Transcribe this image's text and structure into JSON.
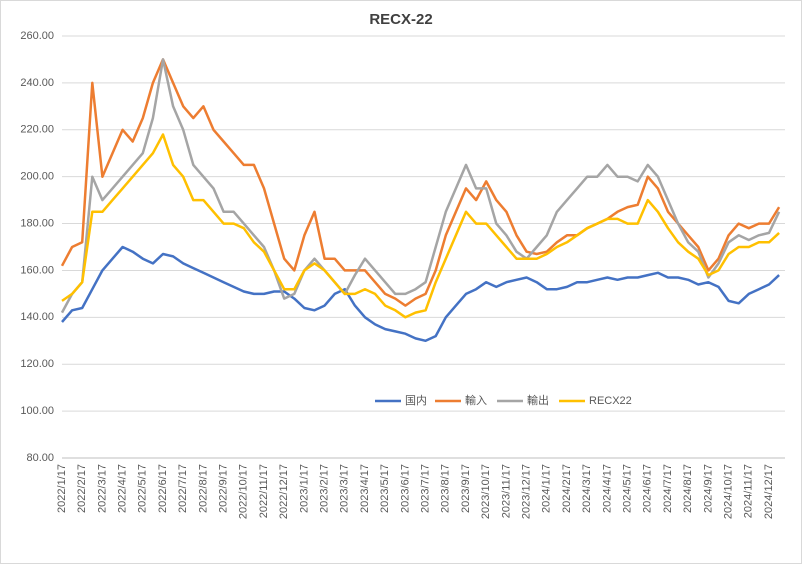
{
  "chart_data": {
    "type": "line",
    "title": "RECX-22",
    "categories": [
      "2022/1/17",
      null,
      "2022/2/17",
      null,
      "2022/3/17",
      null,
      "2022/4/17",
      null,
      "2022/5/17",
      null,
      "2022/6/17",
      null,
      "2022/7/17",
      null,
      "2022/8/17",
      null,
      "2022/9/17",
      null,
      "2022/10/17",
      null,
      "2022/11/17",
      null,
      "2022/12/17",
      null,
      "2023/1/17",
      null,
      "2023/2/17",
      null,
      "2023/3/17",
      null,
      "2023/4/17",
      null,
      "2023/5/17",
      null,
      "2023/6/17",
      null,
      "2023/7/17",
      null,
      "2023/8/17",
      null,
      "2023/9/17",
      null,
      "2023/10/17",
      null,
      "2023/11/17",
      null,
      "2023/12/17",
      null,
      "2024/1/17",
      null,
      "2024/2/17",
      null,
      "2024/3/17",
      null,
      "2024/4/17",
      null,
      "2024/5/17",
      null,
      "2024/6/17",
      null,
      "2024/7/17",
      null,
      "2024/8/17",
      null,
      "2024/9/17",
      null,
      "2024/10/17",
      null,
      "2024/11/17",
      null,
      "2024/12/17",
      null
    ],
    "series": [
      {
        "name": "国内",
        "color": "#4472c4",
        "values": [
          138,
          143,
          144,
          152,
          160,
          165,
          170,
          168,
          165,
          163,
          167,
          166,
          163,
          161,
          159,
          157,
          155,
          153,
          151,
          150,
          150,
          151,
          151,
          148,
          144,
          143,
          145,
          150,
          152,
          145,
          140,
          137,
          135,
          134,
          133,
          131,
          130,
          132,
          140,
          145,
          150,
          152,
          155,
          153,
          155,
          156,
          157,
          155,
          152,
          152,
          153,
          155,
          155,
          156,
          157,
          156,
          157,
          157,
          158,
          159,
          157,
          157,
          156,
          154,
          155,
          153,
          147,
          146,
          150,
          152,
          154,
          158
        ]
      },
      {
        "name": "輸入",
        "color": "#ed7d31",
        "values": [
          162,
          170,
          172,
          240,
          200,
          210,
          220,
          215,
          225,
          240,
          250,
          240,
          230,
          225,
          230,
          220,
          215,
          210,
          205,
          205,
          195,
          180,
          165,
          160,
          175,
          185,
          165,
          165,
          160,
          160,
          160,
          155,
          150,
          148,
          145,
          148,
          150,
          160,
          175,
          185,
          195,
          190,
          198,
          190,
          185,
          175,
          168,
          167,
          168,
          172,
          175,
          175,
          178,
          180,
          182,
          185,
          187,
          188,
          200,
          195,
          185,
          180,
          175,
          170,
          160,
          165,
          175,
          180,
          178,
          180,
          180,
          187
        ]
      },
      {
        "name": "輸出",
        "color": "#a5a5a5",
        "values": [
          142,
          150,
          155,
          200,
          190,
          195,
          200,
          205,
          210,
          225,
          250,
          230,
          220,
          205,
          200,
          195,
          185,
          185,
          180,
          175,
          170,
          160,
          148,
          150,
          160,
          165,
          160,
          155,
          150,
          158,
          165,
          160,
          155,
          150,
          150,
          152,
          155,
          170,
          185,
          195,
          205,
          195,
          195,
          180,
          175,
          168,
          165,
          170,
          175,
          185,
          190,
          195,
          200,
          200,
          205,
          200,
          200,
          198,
          205,
          200,
          190,
          180,
          172,
          168,
          157,
          163,
          172,
          175,
          173,
          175,
          176,
          185
        ]
      },
      {
        "name": "RECX22",
        "color": "#ffc000",
        "values": [
          147,
          150,
          155,
          185,
          185,
          190,
          195,
          200,
          205,
          210,
          218,
          205,
          200,
          190,
          190,
          185,
          180,
          180,
          178,
          172,
          168,
          160,
          152,
          152,
          160,
          163,
          160,
          155,
          150,
          150,
          152,
          150,
          145,
          143,
          140,
          142,
          143,
          155,
          165,
          175,
          185,
          180,
          180,
          175,
          170,
          165,
          165,
          165,
          167,
          170,
          172,
          175,
          178,
          180,
          182,
          182,
          180,
          180,
          190,
          185,
          178,
          172,
          168,
          165,
          158,
          160,
          167,
          170,
          170,
          172,
          172,
          176
        ]
      }
    ],
    "ylim": [
      80,
      260
    ],
    "yticks": [
      {
        "value": 80,
        "label": "80.00"
      },
      {
        "value": 100,
        "label": "100.00"
      },
      {
        "value": 120,
        "label": "120.00"
      },
      {
        "value": 140,
        "label": "140.00"
      },
      {
        "value": 160,
        "label": "160.00"
      },
      {
        "value": 180,
        "label": "180.00"
      },
      {
        "value": 200,
        "label": "200.00"
      },
      {
        "value": 220,
        "label": "220.00"
      },
      {
        "value": 240,
        "label": "240.00"
      },
      {
        "value": 260,
        "label": "260.00"
      }
    ],
    "grid": true,
    "legend": "center"
  }
}
